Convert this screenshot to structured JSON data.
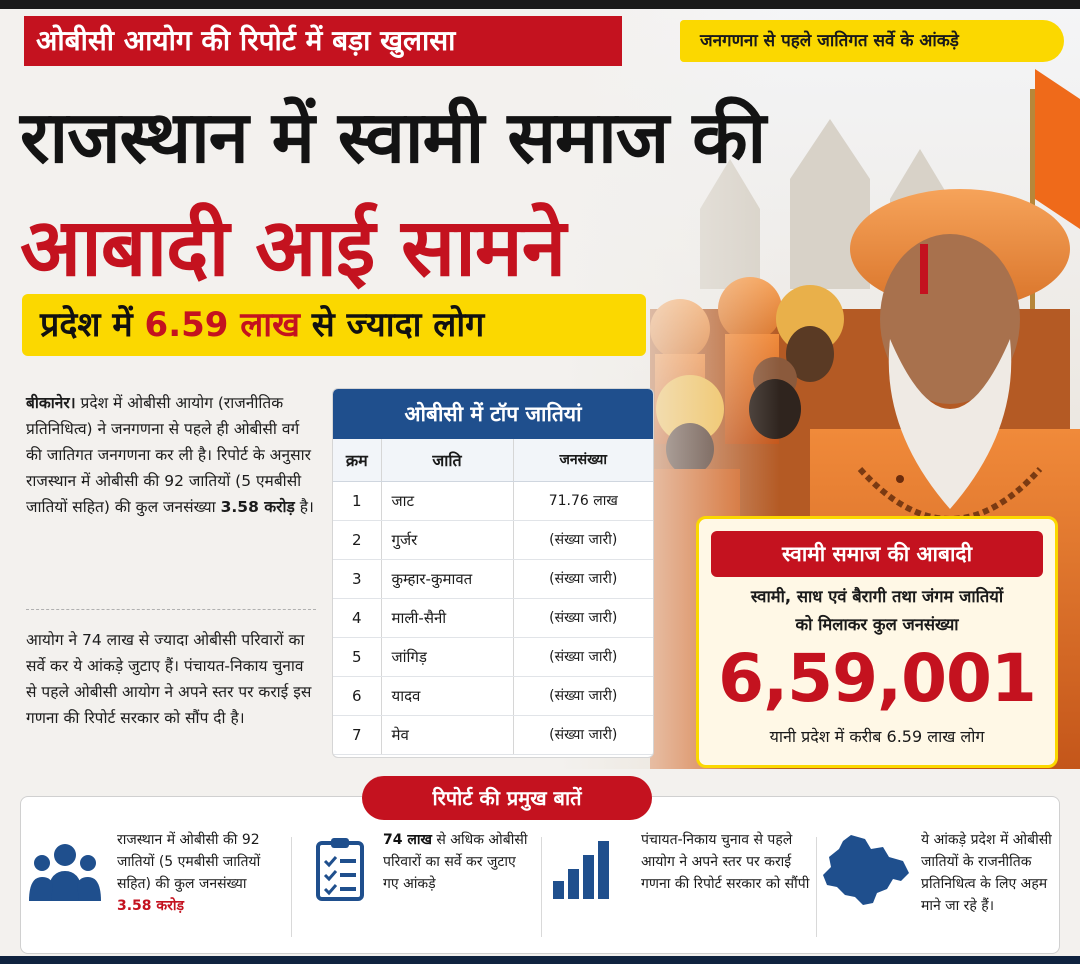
{
  "kicker": "ओबीसी आयोग की रिपोर्ट में बड़ा खुलासा",
  "tagline": "जनगणना से पहले जातिगत सर्वे के आंकड़े",
  "headline": {
    "line1": "राजस्थान में स्वामी समाज की",
    "line2": "आबादी आई सामने"
  },
  "subhead": {
    "prefix": "प्रदेश में ",
    "highlight": "6.59 लाख",
    "suffix": " से ज्यादा लोग"
  },
  "story": {
    "p1_lead": "बीकानेर।",
    "p1_text": " प्रदेश में ओबीसी आयोग (राजनीतिक प्रतिनिधित्व) ने जनगणना से पहले ही ओबीसी वर्ग की जातिगत जनगणना कर ली है। रिपोर्ट के अनुसार राजस्थान में ओबीसी की 92 जातियों (5 एमबीसी जातियों सहित) की कुल जनसंख्या ",
    "p1_bold": "3.58 करोड़",
    "p1_end": " है।",
    "p2": "आयोग ने 74 लाख से ज्यादा ओबीसी परिवारों का सर्वे कर ये आंकड़े जुटाए हैं। पंचायत-निकाय चुनाव से पहले ओबीसी आयोग ने अपने स्तर पर कराई इस गणना की रिपोर्ट सरकार को सौंप दी है।"
  },
  "table": {
    "title": "ओबीसी में टॉप जातियां",
    "headers": [
      "क्रम",
      "जाति",
      "जनसंख्या"
    ],
    "rows": [
      [
        "1",
        "जाट",
        "71.76 लाख"
      ],
      [
        "2",
        "गुर्जर",
        "(संख्या जारी)"
      ],
      [
        "3",
        "कुम्हार-कुमावत",
        "(संख्या जारी)"
      ],
      [
        "4",
        "माली-सैनी",
        "(संख्या जारी)"
      ],
      [
        "5",
        "जांगिड़",
        "(संख्या जारी)"
      ],
      [
        "6",
        "यादव",
        "(संख्या जारी)"
      ],
      [
        "7",
        "मेव",
        "(संख्या जारी)"
      ]
    ]
  },
  "population": {
    "title": "स्वामी समाज की आबादी",
    "desc_line1": "स्वामी, साध एवं बैरागी तथा जंगम जातियों",
    "desc_line2": "को मिलाकर कुल जनसंख्या",
    "number": "6,59,001",
    "foot": "यानी प्रदेश में करीब 6.59 लाख लोग"
  },
  "points": {
    "title": "रिपोर्ट की प्रमुख बातें",
    "p1_text": "राजस्थान में ओबीसी की 92 जातियों (5 एमबीसी जातियों सहित) की कुल जनसंख्या ",
    "p1_bold": "3.58 करोड़",
    "p2_bold": "74 लाख",
    "p2_text": " से अधिक ओबीसी परिवारों का सर्वे कर जुटाए गए आंकड़े",
    "p3_text": "पंचायत-निकाय चुनाव से पहले आयोग ने अपने स्तर पर कराई गणना की रिपोर्ट सरकार को सौंपी",
    "p4_text": "ये आंकड़े प्रदेश में ओबीसी जातियों के राजनीतिक प्रतिनिधित्व के लिए अहम माने जा रहे हैं।"
  },
  "icons": {
    "p1": "people-icon",
    "p2": "checklist-icon",
    "p3": "bar-chart-icon",
    "p4": "rajasthan-map-icon"
  },
  "colors": {
    "red": "#c4121f",
    "yellow": "#fbd800",
    "navy": "#1f4f8d"
  }
}
